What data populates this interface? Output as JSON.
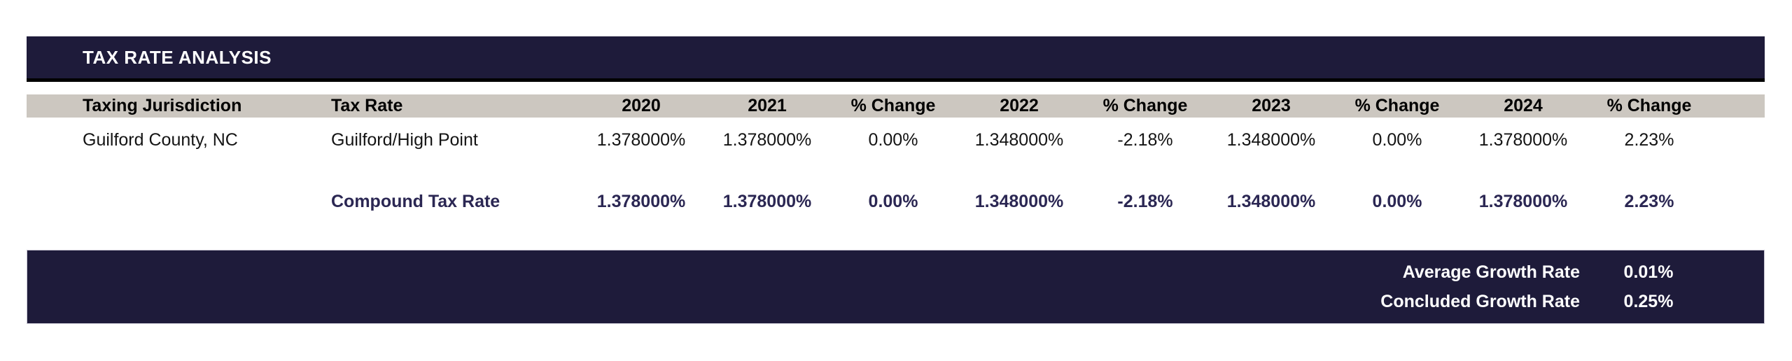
{
  "title": "TAX RATE ANALYSIS",
  "colors": {
    "navy_bar": "#1e1b3a",
    "beige_header": "#ccc7c0",
    "title_underline": "#000000",
    "compound_text": "#2b2753",
    "body_text": "#141414"
  },
  "table": {
    "headers": [
      "Taxing Jurisdiction",
      "Tax Rate",
      "2020",
      "2021",
      "% Change",
      "2022",
      "% Change",
      "2023",
      "% Change",
      "2024",
      "% Change"
    ],
    "rows": [
      {
        "jurisdiction": "Guilford County, NC",
        "tax_rate_label": "Guilford/High Point",
        "values": [
          "1.378000%",
          "1.378000%",
          "0.00%",
          "1.348000%",
          "-2.18%",
          "1.348000%",
          "0.00%",
          "1.378000%",
          "2.23%"
        ]
      }
    ],
    "compound_row": {
      "label": "Compound Tax Rate",
      "values": [
        "1.378000%",
        "1.378000%",
        "0.00%",
        "1.348000%",
        "-2.18%",
        "1.348000%",
        "0.00%",
        "1.378000%",
        "2.23%"
      ]
    }
  },
  "summary": {
    "rows": [
      {
        "label": "Average Growth Rate",
        "value": "0.01%"
      },
      {
        "label": "Concluded Growth Rate",
        "value": "0.25%"
      }
    ]
  }
}
